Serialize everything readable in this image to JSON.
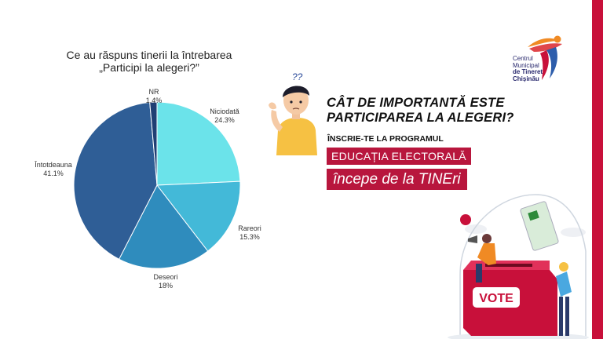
{
  "chart_data": {
    "type": "pie",
    "title_lines": [
      "Ce au răspuns tinerii la întrebarea",
      "„Participi la alegeri?”"
    ],
    "slices": [
      {
        "name": "Niciodată",
        "value": 24.3,
        "value_label": "24.3%",
        "color": "#6be3ea"
      },
      {
        "name": "Rareori",
        "value": 15.3,
        "value_label": "15.3%",
        "color": "#43b9d8"
      },
      {
        "name": "Deseori",
        "value": 18,
        "value_label": "18%",
        "color": "#2f8cbd"
      },
      {
        "name": "Întotdeauna",
        "value": 41.1,
        "value_label": "41.1%",
        "color": "#2f5e96"
      },
      {
        "name": "NR",
        "value": 1.4,
        "value_label": "1.4%",
        "color": "#1f3f74"
      }
    ]
  },
  "logo": {
    "line1": "Centrul",
    "line2": "Municipal",
    "line3": "de Tineret",
    "line4": "Chișinău"
  },
  "boy": {
    "question_marks": "??"
  },
  "headline": {
    "line1": "CÂT DE IMPORTANTĂ ESTE",
    "line2": "PARTICIPAREA LA ALEGERI?"
  },
  "subline": "ÎNSCRIE-TE LA PROGRAMUL",
  "tag1": "EDUCAȚIA ELECTORALĂ",
  "tag2": "începe de la TINEri",
  "illustration": {
    "box_label": "VOTE"
  },
  "colors": {
    "accent": "#b8163d",
    "bar": "#c8103a"
  }
}
